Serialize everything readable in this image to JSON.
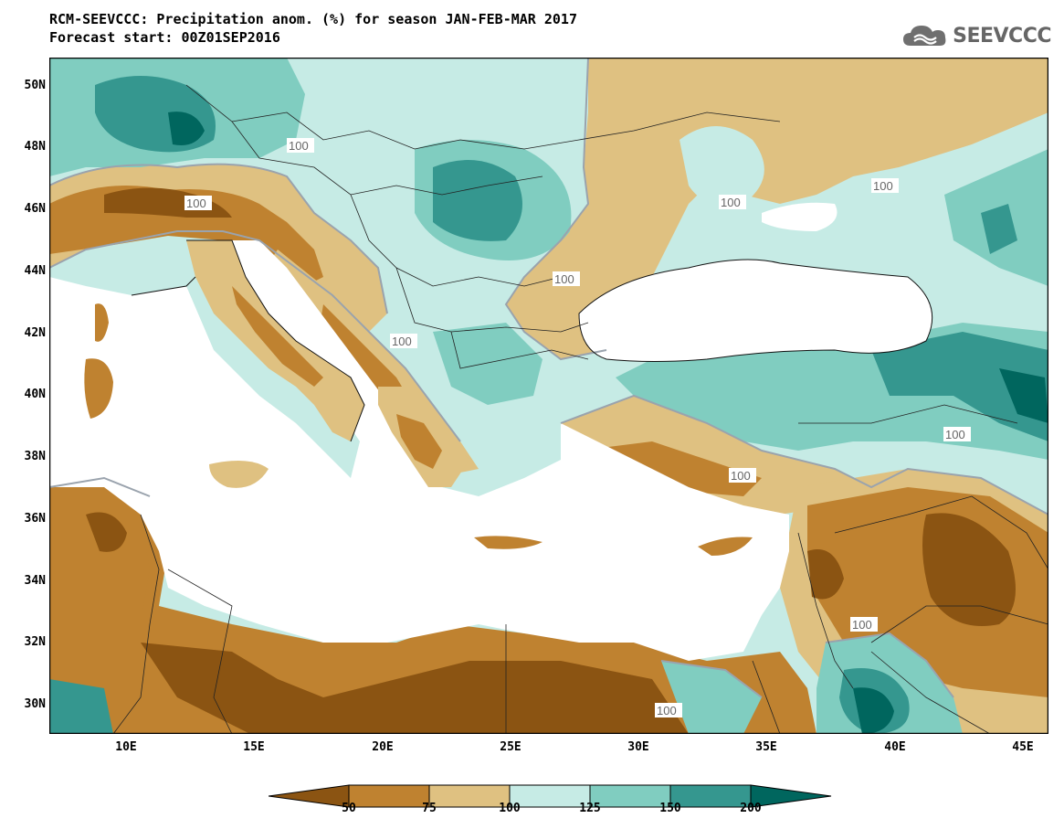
{
  "header": {
    "title_line1": "RCM-SEEVCCC: Precipitation anom. (%) for season JAN-FEB-MAR 2017",
    "title_line2": "Forecast start: 00Z01SEP2016",
    "logo_text": "SEEVCCC",
    "logo_icon": "cloud-icon"
  },
  "map": {
    "lon_range": [
      7,
      46
    ],
    "lat_range": [
      29,
      51
    ],
    "lat_ticks": [
      "50N",
      "48N",
      "46N",
      "44N",
      "42N",
      "40N",
      "38N",
      "36N",
      "34N",
      "32N",
      "30N"
    ],
    "lon_ticks": [
      "10E",
      "15E",
      "20E",
      "25E",
      "30E",
      "35E",
      "40E",
      "45E"
    ],
    "contour_label": "100",
    "colors": {
      "dark_brown": "#8b5412",
      "brown": "#bf8230",
      "tan": "#dfc181",
      "pale_cyan": "#c6ebe5",
      "mid_teal": "#80cdc0",
      "teal": "#35978f",
      "dark_teal": "#00665e",
      "sea": "#ffffff",
      "contour": "#9aa3ad"
    }
  },
  "colorbar": {
    "labels": [
      "50",
      "75",
      "100",
      "125",
      "150",
      "200"
    ],
    "colors": [
      "#8b5412",
      "#bf8230",
      "#dfc181",
      "#c6ebe5",
      "#80cdc0",
      "#35978f",
      "#00665e"
    ]
  }
}
